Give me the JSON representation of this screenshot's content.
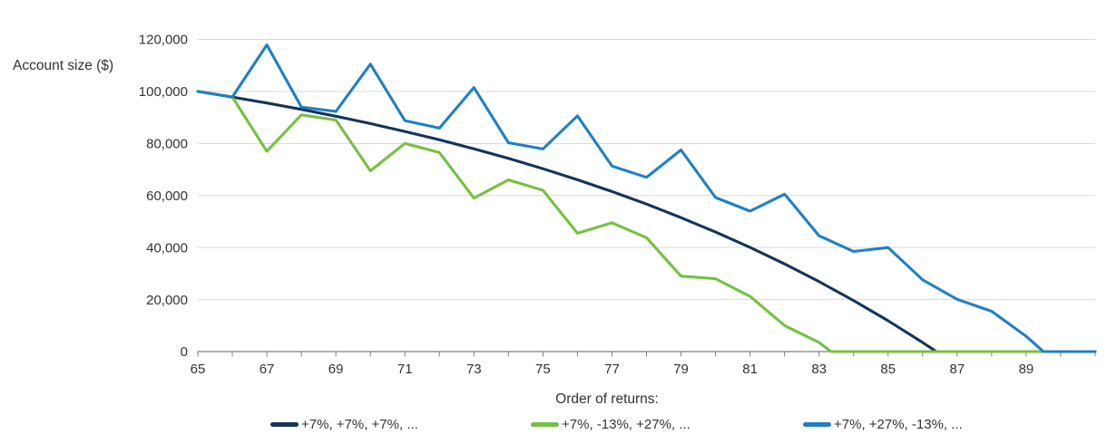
{
  "colors": {
    "gridline": "#d9d9d9",
    "axis": "#808080",
    "text": "#333333"
  },
  "chart_data": {
    "type": "line",
    "ylabel": "Account size ($)",
    "legend_title": "Order of returns:",
    "legend_position": "bottom",
    "grid": "horizontal-only",
    "x_axis": {
      "min": 65,
      "max": 91,
      "tick_step": 1,
      "labeled_ticks": [
        65,
        67,
        69,
        71,
        73,
        75,
        77,
        79,
        81,
        83,
        85,
        87,
        89
      ]
    },
    "y_axis": {
      "min": 0,
      "max": 120000,
      "tick_step": 20000,
      "ticks": [
        {
          "value": 0,
          "label": "0"
        },
        {
          "value": 20000,
          "label": "20,000"
        },
        {
          "value": 40000,
          "label": "40,000"
        },
        {
          "value": 60000,
          "label": "60,000"
        },
        {
          "value": 80000,
          "label": "80,000"
        },
        {
          "value": 100000,
          "label": "100,000"
        },
        {
          "value": 120000,
          "label": "120,000"
        }
      ]
    },
    "series": [
      {
        "name": "+7%, +7%, +7%, ...",
        "color": "#14345a",
        "points": [
          [
            65,
            100000
          ],
          [
            66,
            97850
          ],
          [
            67,
            95550
          ],
          [
            68,
            93100
          ],
          [
            69,
            90450
          ],
          [
            70,
            87650
          ],
          [
            71,
            84600
          ],
          [
            72,
            81400
          ],
          [
            73,
            77950
          ],
          [
            74,
            74250
          ],
          [
            75,
            70300
          ],
          [
            76,
            66050
          ],
          [
            77,
            61500
          ],
          [
            78,
            56700
          ],
          [
            79,
            51500
          ],
          [
            80,
            45950
          ],
          [
            81,
            40050
          ],
          [
            82,
            33700
          ],
          [
            83,
            26900
          ],
          [
            84,
            19600
          ],
          [
            85,
            11850
          ],
          [
            86,
            3500
          ],
          [
            86.4,
            0
          ],
          [
            91,
            0
          ]
        ]
      },
      {
        "name": "+7%, -13%, +27%, ...",
        "color": "#76c043",
        "points": [
          [
            65,
            100000
          ],
          [
            66,
            97850
          ],
          [
            67,
            77000
          ],
          [
            68,
            91000
          ],
          [
            69,
            89000
          ],
          [
            70,
            69500
          ],
          [
            71,
            80000
          ],
          [
            72,
            76500
          ],
          [
            73,
            59000
          ],
          [
            74,
            66000
          ],
          [
            75,
            62000
          ],
          [
            76,
            45500
          ],
          [
            77,
            49500
          ],
          [
            78,
            43800
          ],
          [
            79,
            29000
          ],
          [
            80,
            28000
          ],
          [
            81,
            21200
          ],
          [
            82,
            10000
          ],
          [
            83,
            3500
          ],
          [
            83.35,
            0
          ],
          [
            91,
            0
          ]
        ]
      },
      {
        "name": "+7%, +27%, -13%, ...",
        "color": "#1f80c4",
        "points": [
          [
            65,
            100000
          ],
          [
            66,
            97850
          ],
          [
            67,
            117900
          ],
          [
            68,
            94000
          ],
          [
            69,
            92300
          ],
          [
            70,
            110500
          ],
          [
            71,
            88800
          ],
          [
            72,
            85900
          ],
          [
            73,
            101500
          ],
          [
            74,
            80300
          ],
          [
            75,
            77900
          ],
          [
            76,
            90600
          ],
          [
            77,
            71300
          ],
          [
            78,
            67000
          ],
          [
            79,
            77500
          ],
          [
            80,
            59200
          ],
          [
            81,
            54000
          ],
          [
            82,
            60500
          ],
          [
            83,
            44500
          ],
          [
            84,
            38500
          ],
          [
            85,
            40000
          ],
          [
            86,
            27600
          ],
          [
            87,
            20100
          ],
          [
            88,
            15500
          ],
          [
            89,
            5900
          ],
          [
            89.5,
            0
          ],
          [
            91,
            0
          ]
        ]
      }
    ]
  }
}
